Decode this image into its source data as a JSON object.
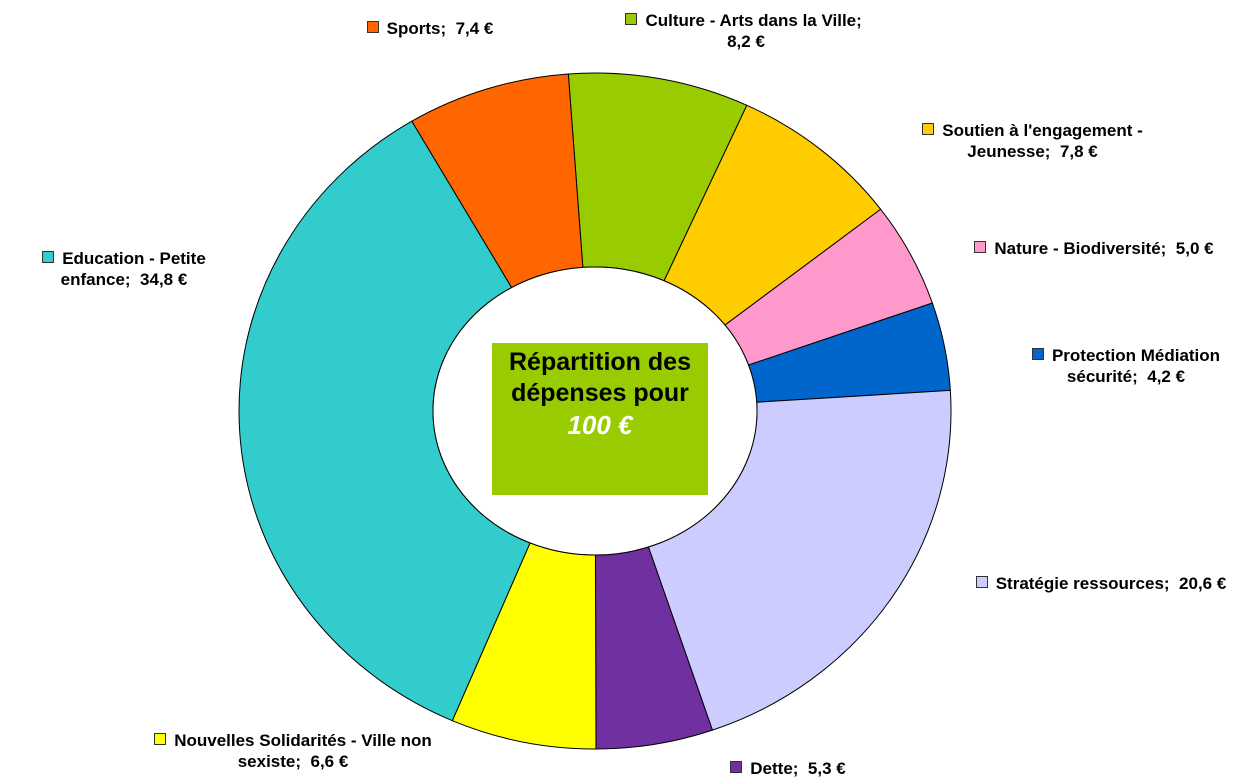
{
  "chart_data": {
    "type": "donut",
    "title": "Répartition des dépenses pour",
    "subtitle": "100 €",
    "categories": [
      "Culture - Arts dans la Ville;",
      "Soutien à l'engagement - Jeunesse;",
      "Nature - Biodiversité;",
      "Protection Médiation sécurité;",
      "Stratégie ressources;",
      "Dette;",
      "Nouvelles Solidarités - Ville non sexiste;",
      "Education - Petite enfance;",
      "Sports;"
    ],
    "values": [
      8.2,
      7.8,
      5.0,
      4.2,
      20.6,
      5.3,
      6.6,
      34.8,
      7.4
    ],
    "value_labels": [
      "8,2 €",
      "7,8 €",
      "5,0 €",
      "4,2 €",
      "20,6 €",
      "5,3 €",
      "6,6 €",
      "34,8 €",
      "7,4 €"
    ],
    "colors": [
      "#99cc00",
      "#ffcc00",
      "#ff99cc",
      "#0066cc",
      "#ccccff",
      "#7030a0",
      "#ffff00",
      "#33cccc",
      "#ff6600"
    ]
  }
}
